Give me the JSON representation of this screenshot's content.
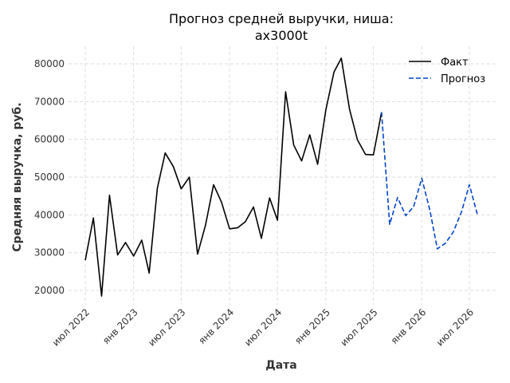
{
  "chart_data": {
    "type": "line",
    "title_lines": [
      "Прогноз средней выручки, ниша:",
      "ax3000t"
    ],
    "xlabel": "Дата",
    "ylabel": "Средняя выручка, руб.",
    "ylim": [
      15000,
      85000
    ],
    "yticks": [
      20000,
      30000,
      40000,
      50000,
      60000,
      70000,
      80000
    ],
    "xticks": [
      {
        "date": "2022-07-01",
        "label": "июл 2022"
      },
      {
        "date": "2023-01-01",
        "label": "янв 2023"
      },
      {
        "date": "2023-07-01",
        "label": "июл 2023"
      },
      {
        "date": "2024-01-01",
        "label": "янв 2024"
      },
      {
        "date": "2024-07-01",
        "label": "июл 2024"
      },
      {
        "date": "2025-01-01",
        "label": "янв 2025"
      },
      {
        "date": "2025-07-01",
        "label": "июл 2025"
      },
      {
        "date": "2026-01-01",
        "label": "янв 2026"
      },
      {
        "date": "2026-07-01",
        "label": "июл 2026"
      }
    ],
    "grid": true,
    "legend_position": "top-right",
    "series": [
      {
        "name": "Факт",
        "color": "#000000",
        "style": "solid",
        "points": [
          [
            "2022-07-01",
            28000
          ],
          [
            "2022-08-01",
            39200
          ],
          [
            "2022-09-01",
            18500
          ],
          [
            "2022-10-01",
            45200
          ],
          [
            "2022-11-01",
            29400
          ],
          [
            "2022-12-01",
            32700
          ],
          [
            "2023-01-01",
            29100
          ],
          [
            "2023-02-01",
            33300
          ],
          [
            "2023-03-01",
            24600
          ],
          [
            "2023-04-01",
            47000
          ],
          [
            "2023-05-01",
            56400
          ],
          [
            "2023-06-01",
            52800
          ],
          [
            "2023-07-01",
            46900
          ],
          [
            "2023-08-01",
            50000
          ],
          [
            "2023-09-01",
            29600
          ],
          [
            "2023-10-01",
            37200
          ],
          [
            "2023-11-01",
            48000
          ],
          [
            "2023-12-01",
            43400
          ],
          [
            "2024-01-01",
            36300
          ],
          [
            "2024-02-01",
            36600
          ],
          [
            "2024-03-01",
            38200
          ],
          [
            "2024-04-01",
            42100
          ],
          [
            "2024-05-01",
            33800
          ],
          [
            "2024-06-01",
            44500
          ],
          [
            "2024-07-01",
            38600
          ],
          [
            "2024-08-01",
            72600
          ],
          [
            "2024-09-01",
            58500
          ],
          [
            "2024-10-01",
            54300
          ],
          [
            "2024-11-01",
            61200
          ],
          [
            "2024-12-01",
            53400
          ],
          [
            "2025-01-01",
            67800
          ],
          [
            "2025-02-01",
            77800
          ],
          [
            "2025-03-01",
            81500
          ],
          [
            "2025-04-01",
            68000
          ],
          [
            "2025-05-01",
            59900
          ],
          [
            "2025-06-01",
            56000
          ],
          [
            "2025-07-01",
            55900
          ],
          [
            "2025-08-01",
            67200
          ]
        ]
      },
      {
        "name": "Прогноз",
        "color": "#0044cc",
        "style": "dashed",
        "points": [
          [
            "2025-08-01",
            67200
          ],
          [
            "2025-09-01",
            37500
          ],
          [
            "2025-10-01",
            44600
          ],
          [
            "2025-11-01",
            39800
          ],
          [
            "2025-12-01",
            42200
          ],
          [
            "2026-01-01",
            49700
          ],
          [
            "2026-02-01",
            41200
          ],
          [
            "2026-03-01",
            31000
          ],
          [
            "2026-04-01",
            32500
          ],
          [
            "2026-05-01",
            35500
          ],
          [
            "2026-06-01",
            40800
          ],
          [
            "2026-07-01",
            48000
          ],
          [
            "2026-08-01",
            40000
          ]
        ]
      }
    ]
  }
}
